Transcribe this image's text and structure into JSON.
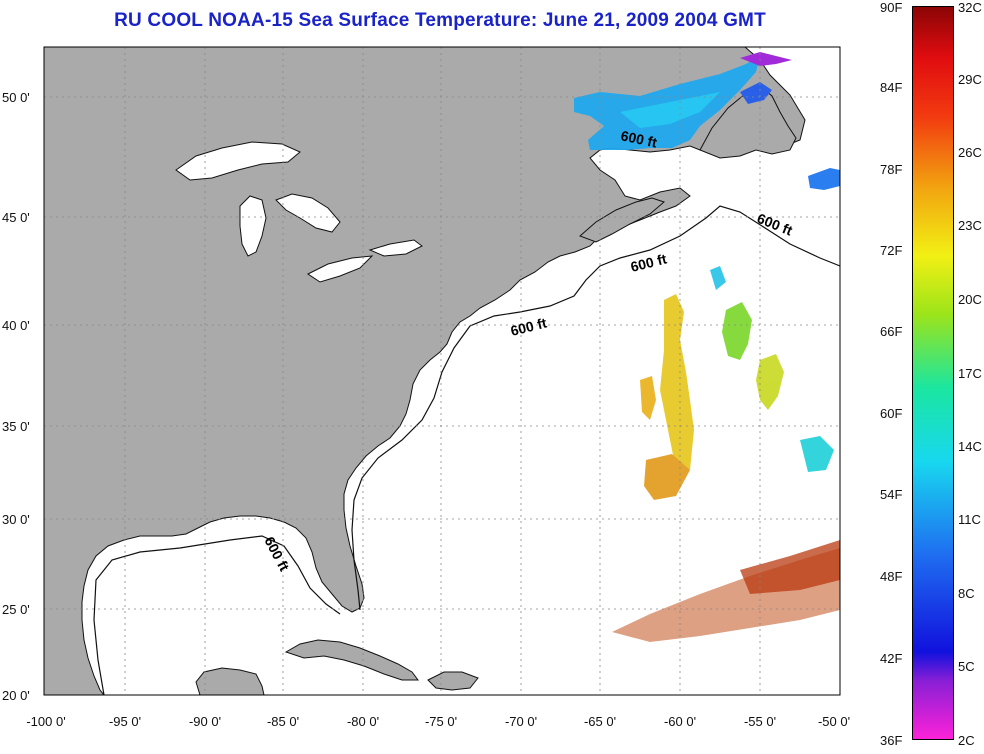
{
  "title": "RU COOL  NOAA-15  Sea Surface Temperature:  June 21, 2009 2004 GMT",
  "lat_ticks": [
    "50 0'",
    "45 0'",
    "40 0'",
    "35 0'",
    "30 0'",
    "25 0'",
    "20 0'"
  ],
  "lon_ticks": [
    "-100 0'",
    "-95 0'",
    "-90 0'",
    "-85 0'",
    "-80 0'",
    "-75 0'",
    "-70 0'",
    "-65 0'",
    "-60 0'",
    "-55 0'",
    "-50 0'"
  ],
  "contour_labels": [
    "600 ft",
    "600 ft",
    "600 ft",
    "600 ft",
    "600 ft"
  ],
  "colorbar": {
    "fahrenheit": [
      "90F",
      "84F",
      "78F",
      "72F",
      "66F",
      "60F",
      "54F",
      "48F",
      "42F",
      "36F"
    ],
    "celsius": [
      "32C",
      "29C",
      "26C",
      "23C",
      "20C",
      "17C",
      "14C",
      "11C",
      "8C",
      "5C",
      "2C"
    ]
  },
  "colors": {
    "land": "#aaaaaa",
    "ocean": "#ffffff",
    "title": "#1a23c8",
    "grid": "#888888"
  }
}
